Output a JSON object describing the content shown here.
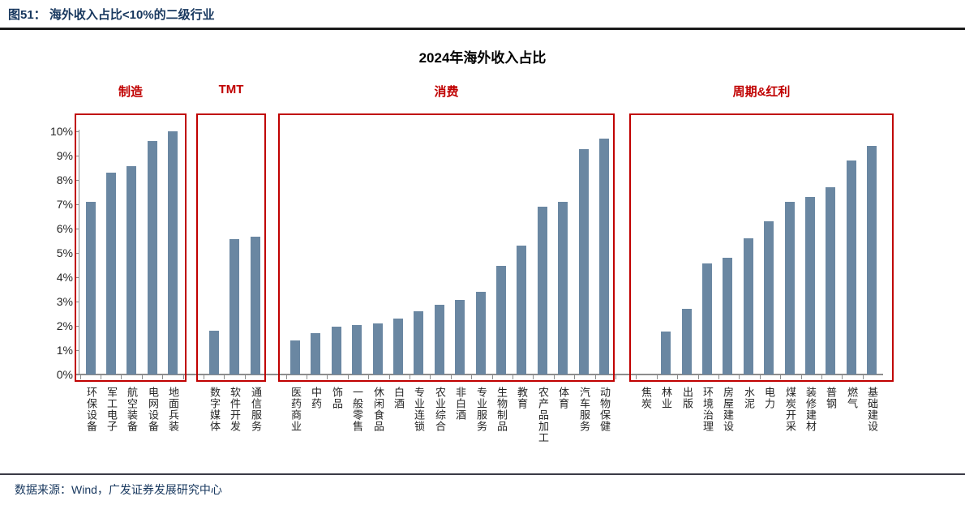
{
  "header": {
    "title": "图51： 海外收入占比<10%的二级行业"
  },
  "footer": {
    "source": "数据来源：Wind，广发证券发展研究中心"
  },
  "chart_data": {
    "type": "bar",
    "title": "2024年海外收入占比",
    "xlabel": "",
    "ylabel": "",
    "ylim": [
      0,
      10
    ],
    "ytick_labels": [
      "0%",
      "1%",
      "2%",
      "3%",
      "4%",
      "5%",
      "6%",
      "7%",
      "8%",
      "9%",
      "10%"
    ],
    "grid": false,
    "legend": "none",
    "bar_color": "#6A87A2",
    "group_box_color": "#C00000",
    "unit": "percent",
    "groups": [
      {
        "name": "制造",
        "categories": [
          "环保设备",
          "军工电子",
          "航空装备",
          "电网设备",
          "地面兵装"
        ],
        "values": [
          7.1,
          8.3,
          8.55,
          9.6,
          10.0
        ]
      },
      {
        "name": "TMT",
        "categories": [
          "数字媒体",
          "软件开发",
          "通信服务"
        ],
        "values": [
          1.8,
          5.55,
          5.65
        ]
      },
      {
        "name": "消费",
        "categories": [
          "医药商业",
          "中药",
          "饰品",
          "一般零售",
          "休闲食品",
          "白酒",
          "专业连锁",
          "农业综合",
          "非白酒",
          "专业服务",
          "生物制品",
          "教育",
          "农产品加工",
          "体育",
          "汽车服务",
          "动物保健"
        ],
        "values": [
          1.4,
          1.7,
          1.95,
          2.05,
          2.1,
          2.3,
          2.6,
          2.85,
          3.05,
          3.4,
          4.45,
          5.3,
          6.9,
          7.1,
          9.25,
          9.7
        ]
      },
      {
        "name": "周期&红利",
        "categories": [
          "焦炭",
          "林业",
          "出版",
          "环境治理",
          "房屋建设",
          "水泥",
          "电力",
          "煤炭开采",
          "装修建材",
          "普钢",
          "燃气",
          "基础建设"
        ],
        "values": [
          0,
          1.75,
          2.7,
          4.55,
          4.8,
          5.6,
          6.3,
          7.1,
          7.3,
          7.7,
          8.8,
          9.4
        ]
      }
    ]
  }
}
